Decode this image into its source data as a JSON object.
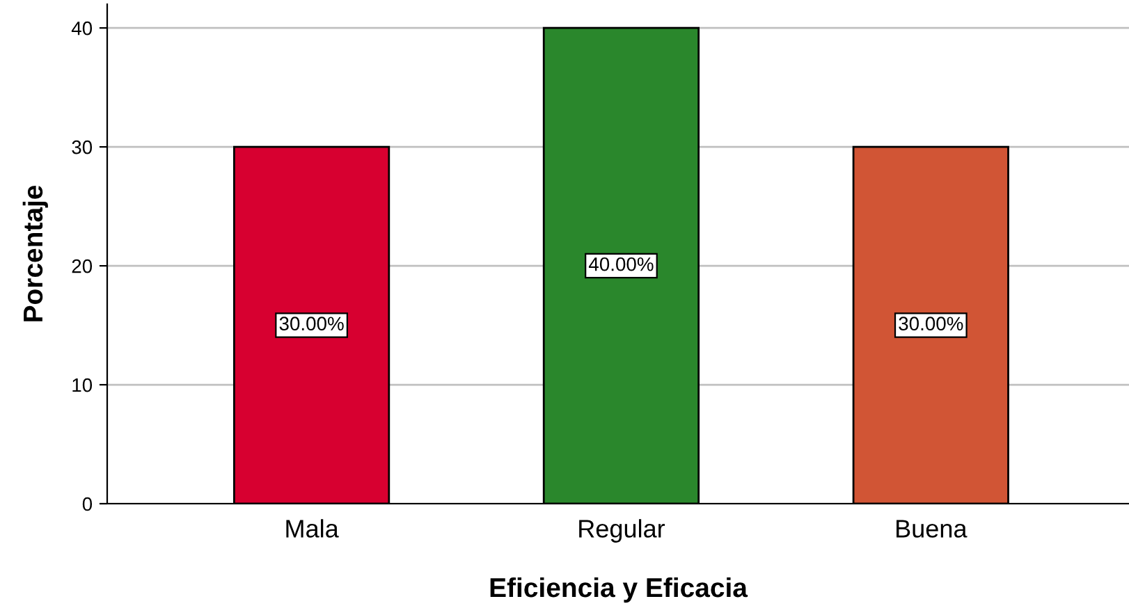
{
  "chart_data": {
    "type": "bar",
    "xlabel": "Eficiencia y Eficacia",
    "ylabel": "Porcentaje",
    "categories": [
      "Mala",
      "Regular",
      "Buena"
    ],
    "values": [
      30,
      40,
      30
    ],
    "colors": [
      "#d70030",
      "#2a872c",
      "#d15535"
    ],
    "value_labels": [
      "30.00%",
      "40.00%",
      "30.00%"
    ],
    "ylim": [
      0,
      42
    ],
    "yticks": [
      0,
      10,
      20,
      30,
      40
    ],
    "grid": "y"
  }
}
